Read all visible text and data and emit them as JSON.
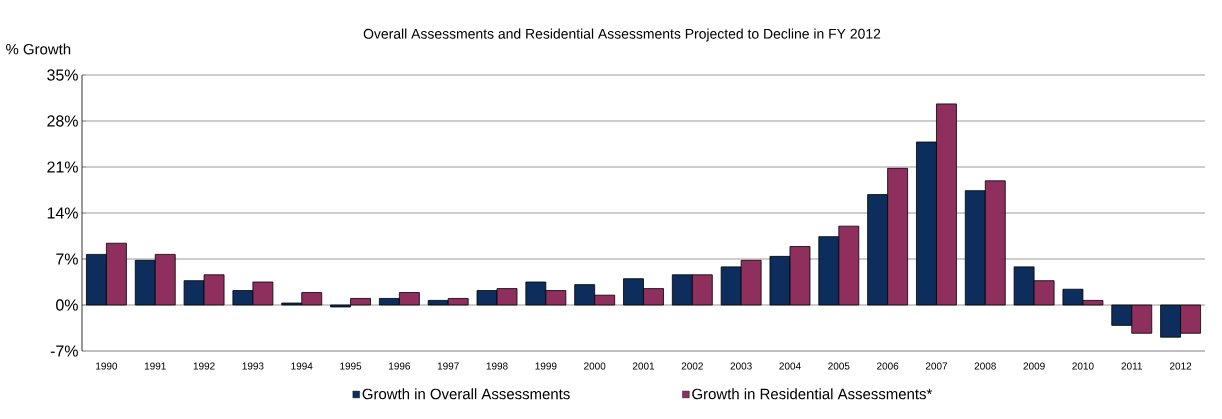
{
  "chart_data": {
    "type": "bar",
    "title": "Overall Assessments and Residential Assessments Projected to Decline in FY 2012",
    "ylabel": "% Growth",
    "categories": [
      "1990",
      "1991",
      "1992",
      "1993",
      "1994",
      "1995",
      "1996",
      "1997",
      "1998",
      "1999",
      "2000",
      "2001",
      "2002",
      "2003",
      "2004",
      "2005",
      "2006",
      "2007",
      "2008",
      "2009",
      "2010",
      "2011",
      "2012"
    ],
    "series": [
      {
        "name": "Growth in Overall Assessments",
        "color": "#0d2e5c",
        "values": [
          7.7,
          6.8,
          3.7,
          2.2,
          0.3,
          -0.3,
          1.0,
          0.7,
          2.2,
          3.5,
          3.1,
          4.0,
          4.6,
          5.8,
          7.4,
          10.4,
          16.8,
          24.8,
          17.4,
          5.8,
          2.4,
          -3.1,
          -4.9
        ]
      },
      {
        "name": "Growth in Residential Assessments*",
        "color": "#8e2f5e",
        "values": [
          9.4,
          7.7,
          4.6,
          3.5,
          1.9,
          1.0,
          1.9,
          1.0,
          2.5,
          2.2,
          1.5,
          2.5,
          4.6,
          6.8,
          8.9,
          12.0,
          20.8,
          30.6,
          18.9,
          3.7,
          0.7,
          -4.3,
          -4.3
        ]
      }
    ],
    "ylim": [
      -7,
      35
    ],
    "yticks": [
      {
        "value": -7,
        "label": "-7%"
      },
      {
        "value": 0,
        "label": "0%"
      },
      {
        "value": 7,
        "label": "7%"
      },
      {
        "value": 14,
        "label": "14%"
      },
      {
        "value": 21,
        "label": "21%"
      },
      {
        "value": 28,
        "label": "28%"
      },
      {
        "value": 35,
        "label": "35%"
      }
    ],
    "grid": "y",
    "legend": "bottom"
  }
}
